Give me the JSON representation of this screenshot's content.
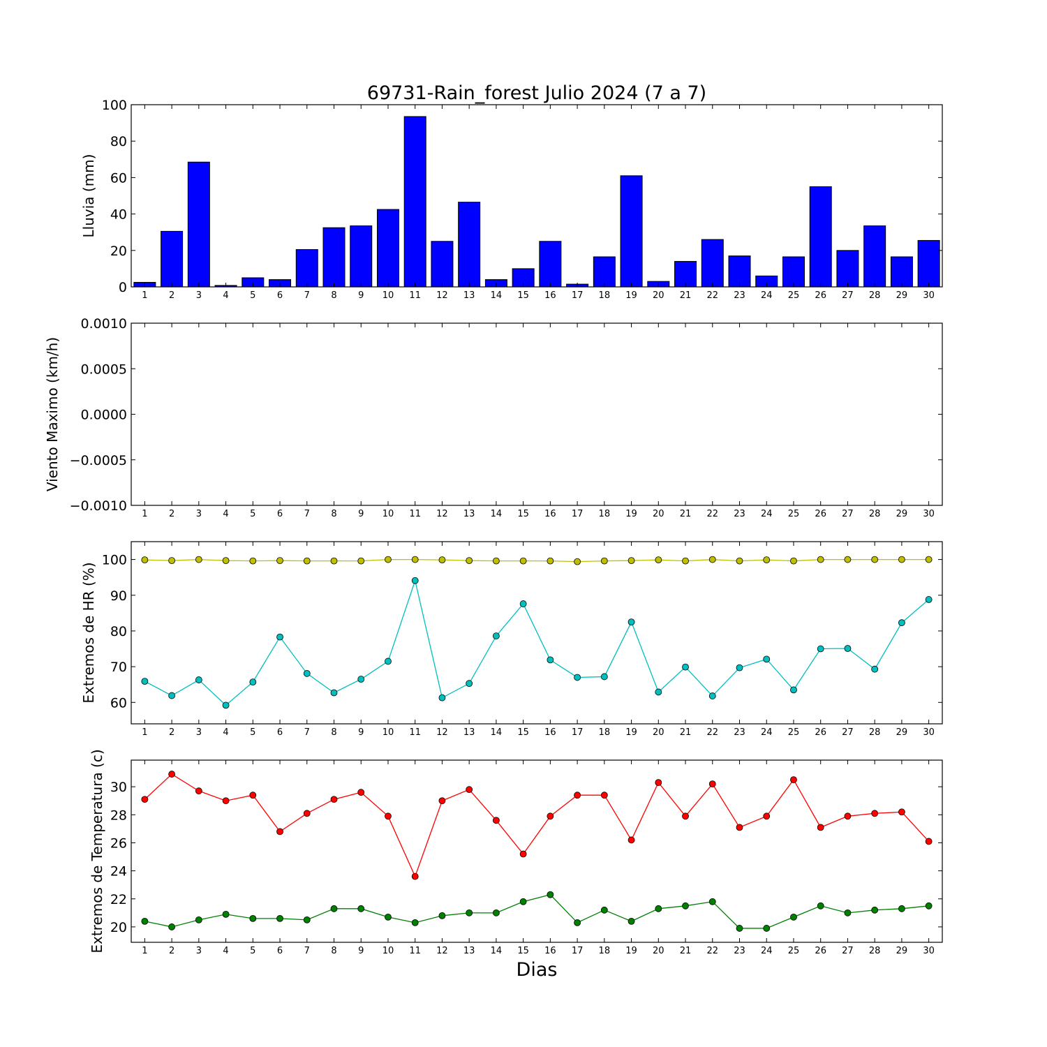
{
  "title": "69731-Rain_forest Julio 2024  (7 a 7)",
  "xlabel": "Dias",
  "colors": {
    "bar": "#0000ff",
    "rh_max": "#bfbf00",
    "rh_min": "#00bfbf",
    "temp_max": "#ff0000",
    "temp_min": "#008000"
  },
  "chart_data": [
    {
      "type": "bar",
      "ylabel": "Lluvia (mm)",
      "ylim": [
        0,
        100
      ],
      "yticks": [
        0,
        20,
        40,
        60,
        80,
        100
      ],
      "yticklabels": [
        "0",
        "20",
        "40",
        "60",
        "80",
        "100"
      ],
      "categories": [
        "1",
        "2",
        "3",
        "4",
        "5",
        "6",
        "7",
        "8",
        "9",
        "10",
        "11",
        "12",
        "13",
        "14",
        "15",
        "16",
        "17",
        "18",
        "19",
        "20",
        "21",
        "22",
        "23",
        "24",
        "25",
        "26",
        "27",
        "28",
        "29",
        "30"
      ],
      "values": [
        2.5,
        30.5,
        68.5,
        0.8,
        5,
        4,
        20.5,
        32.5,
        33.5,
        42.5,
        93.5,
        25,
        46.5,
        4,
        10,
        25,
        1.5,
        16.5,
        61,
        3,
        14,
        26,
        17,
        6,
        16.5,
        55,
        20,
        33.5,
        16.5,
        25.5
      ]
    },
    {
      "type": "line",
      "ylabel": "Viento Maximo (km/h)",
      "ylim": [
        -0.001,
        0.001
      ],
      "yticks": [
        -0.001,
        -0.0005,
        0,
        0.0005,
        0.001
      ],
      "yticklabels": [
        "−0.0010",
        "−0.0005",
        "0.0000",
        "0.0005",
        "0.0010"
      ],
      "categories": [
        "1",
        "2",
        "3",
        "4",
        "5",
        "6",
        "7",
        "8",
        "9",
        "10",
        "11",
        "12",
        "13",
        "14",
        "15",
        "16",
        "17",
        "18",
        "19",
        "20",
        "21",
        "22",
        "23",
        "24",
        "25",
        "26",
        "27",
        "28",
        "29",
        "30"
      ],
      "series": []
    },
    {
      "type": "line",
      "ylabel": "Extremos de HR (%)",
      "ylim": [
        54,
        105
      ],
      "yticks": [
        60,
        70,
        80,
        90,
        100
      ],
      "yticklabels": [
        "60",
        "70",
        "80",
        "90",
        "100"
      ],
      "categories": [
        "1",
        "2",
        "3",
        "4",
        "5",
        "6",
        "7",
        "8",
        "9",
        "10",
        "11",
        "12",
        "13",
        "14",
        "15",
        "16",
        "17",
        "18",
        "19",
        "20",
        "21",
        "22",
        "23",
        "24",
        "25",
        "26",
        "27",
        "28",
        "29",
        "30"
      ],
      "series": [
        {
          "color_key": "rh_max",
          "values": [
            99.9,
            99.7,
            100,
            99.7,
            99.6,
            99.7,
            99.6,
            99.6,
            99.6,
            100,
            100,
            99.9,
            99.7,
            99.6,
            99.6,
            99.6,
            99.4,
            99.6,
            99.7,
            99.9,
            99.6,
            100,
            99.6,
            99.9,
            99.6,
            100,
            100,
            100,
            100,
            100
          ]
        },
        {
          "color_key": "rh_min",
          "values": [
            65.9,
            61.9,
            66.3,
            59.2,
            65.7,
            78.3,
            68.1,
            62.7,
            66.5,
            71.5,
            94.1,
            61.3,
            65.3,
            78.6,
            87.6,
            71.9,
            67,
            67.2,
            82.5,
            62.9,
            69.9,
            61.8,
            69.7,
            72.1,
            63.5,
            75,
            75.1,
            69.3,
            82.3,
            88.8
          ]
        }
      ]
    },
    {
      "type": "line",
      "ylabel": "Extremos de Temperatura (c)",
      "ylim": [
        18.9,
        31.9
      ],
      "yticks": [
        20,
        22,
        24,
        26,
        28,
        30
      ],
      "yticklabels": [
        "20",
        "22",
        "24",
        "26",
        "28",
        "30"
      ],
      "categories": [
        "1",
        "2",
        "3",
        "4",
        "5",
        "6",
        "7",
        "8",
        "9",
        "10",
        "11",
        "12",
        "13",
        "14",
        "15",
        "16",
        "17",
        "18",
        "19",
        "20",
        "21",
        "22",
        "23",
        "24",
        "25",
        "26",
        "27",
        "28",
        "29",
        "30"
      ],
      "series": [
        {
          "color_key": "temp_max",
          "values": [
            29.1,
            30.9,
            29.7,
            29,
            29.4,
            26.8,
            28.1,
            29.1,
            29.6,
            27.9,
            23.6,
            29,
            29.8,
            27.6,
            25.2,
            27.9,
            29.4,
            29.4,
            26.2,
            30.3,
            27.9,
            30.2,
            27.1,
            27.9,
            30.5,
            27.1,
            27.9,
            28.1,
            28.2,
            26.1
          ]
        },
        {
          "color_key": "temp_min",
          "values": [
            20.4,
            20,
            20.5,
            20.9,
            20.6,
            20.6,
            20.5,
            21.3,
            21.3,
            20.7,
            20.3,
            20.8,
            21,
            21,
            21.8,
            22.3,
            20.3,
            21.2,
            20.4,
            21.3,
            21.5,
            21.8,
            19.9,
            19.9,
            20.7,
            21.5,
            21,
            21.2,
            21.3,
            21.5
          ]
        }
      ]
    }
  ]
}
